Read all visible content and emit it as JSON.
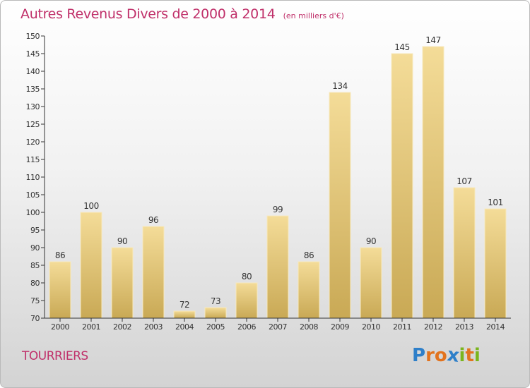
{
  "header": {
    "title": "Autres Revenus Divers de 2000 à 2014",
    "subtitle": "(en milliers d'€)"
  },
  "footer": {
    "commune": "TOURRIERS",
    "logo_letters": [
      "P",
      "r",
      "o",
      "x",
      "i",
      "t",
      "i"
    ],
    "logo_colors": [
      "#2e7fc9",
      "#e2731e",
      "#e2731e",
      "#2e7fc9",
      "#7ab51d",
      "#e2731e",
      "#7ab51d"
    ]
  },
  "chart_data": {
    "type": "bar",
    "title": "Autres Revenus Divers de 2000 à 2014",
    "subtitle": "(en milliers d'€)",
    "xlabel": "",
    "ylabel": "",
    "categories": [
      "2000",
      "2001",
      "2002",
      "2003",
      "2004",
      "2005",
      "2006",
      "2007",
      "2008",
      "2009",
      "2010",
      "2011",
      "2012",
      "2013",
      "2014"
    ],
    "values": [
      86,
      100,
      90,
      96,
      72,
      73,
      80,
      99,
      86,
      134,
      90,
      145,
      147,
      107,
      101
    ],
    "ylim": [
      70,
      150
    ],
    "yticks": [
      70,
      75,
      80,
      85,
      90,
      95,
      100,
      105,
      110,
      115,
      120,
      125,
      130,
      135,
      140,
      145,
      150
    ],
    "grid": false,
    "legend": "none",
    "colors": {
      "bar_light": "#f4dc98",
      "bar_dark": "#c9a955",
      "axis": "#333333",
      "text": "#333333",
      "accent": "#c0306a"
    }
  }
}
